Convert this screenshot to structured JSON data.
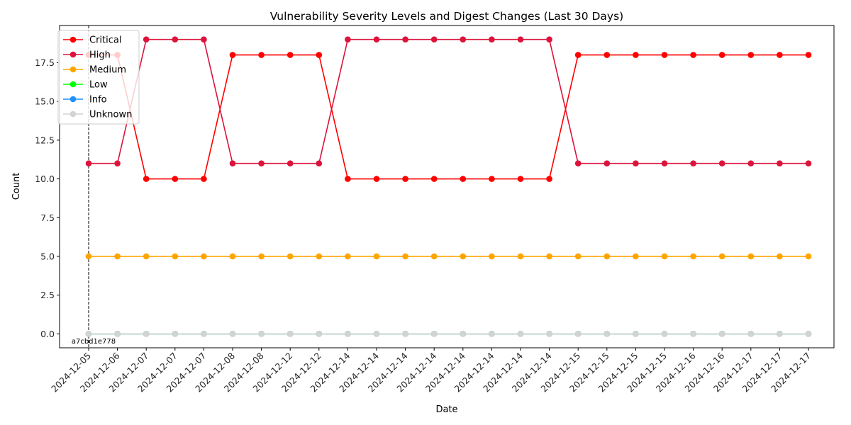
{
  "chart_data": {
    "type": "line",
    "title": "Vulnerability Severity Levels and Digest Changes (Last 30 Days)",
    "xlabel": "Date",
    "ylabel": "Count",
    "ylim": [
      -0.9,
      19.9
    ],
    "yticks": [
      0.0,
      2.5,
      5.0,
      7.5,
      10.0,
      12.5,
      15.0,
      17.5
    ],
    "ytick_labels": [
      "0.0",
      "2.5",
      "5.0",
      "7.5",
      "10.0",
      "12.5",
      "15.0",
      "17.5"
    ],
    "grid": false,
    "legend_position": "top-left",
    "categories": [
      "2024-12-05",
      "2024-12-06",
      "2024-12-07",
      "2024-12-07",
      "2024-12-07",
      "2024-12-08",
      "2024-12-08",
      "2024-12-12",
      "2024-12-12",
      "2024-12-14",
      "2024-12-14",
      "2024-12-14",
      "2024-12-14",
      "2024-12-14",
      "2024-12-14",
      "2024-12-14",
      "2024-12-14",
      "2024-12-15",
      "2024-12-15",
      "2024-12-15",
      "2024-12-15",
      "2024-12-16",
      "2024-12-16",
      "2024-12-17",
      "2024-12-17",
      "2024-12-17"
    ],
    "series": [
      {
        "name": "Critical",
        "color": "#ff0000",
        "values": [
          18,
          18,
          10,
          10,
          10,
          18,
          18,
          18,
          18,
          10,
          10,
          10,
          10,
          10,
          10,
          10,
          10,
          18,
          18,
          18,
          18,
          18,
          18,
          18,
          18,
          18
        ]
      },
      {
        "name": "High",
        "color": "#dc143c",
        "values": [
          11,
          11,
          19,
          19,
          19,
          11,
          11,
          11,
          11,
          19,
          19,
          19,
          19,
          19,
          19,
          19,
          19,
          11,
          11,
          11,
          11,
          11,
          11,
          11,
          11,
          11
        ]
      },
      {
        "name": "Medium",
        "color": "#ffa500",
        "values": [
          5,
          5,
          5,
          5,
          5,
          5,
          5,
          5,
          5,
          5,
          5,
          5,
          5,
          5,
          5,
          5,
          5,
          5,
          5,
          5,
          5,
          5,
          5,
          5,
          5,
          5
        ]
      },
      {
        "name": "Low",
        "color": "#00ff00",
        "values": [
          0,
          0,
          0,
          0,
          0,
          0,
          0,
          0,
          0,
          0,
          0,
          0,
          0,
          0,
          0,
          0,
          0,
          0,
          0,
          0,
          0,
          0,
          0,
          0,
          0,
          0
        ]
      },
      {
        "name": "Info",
        "color": "#1e90ff",
        "values": [
          0,
          0,
          0,
          0,
          0,
          0,
          0,
          0,
          0,
          0,
          0,
          0,
          0,
          0,
          0,
          0,
          0,
          0,
          0,
          0,
          0,
          0,
          0,
          0,
          0,
          0
        ]
      },
      {
        "name": "Unknown",
        "color": "#d3d3d3",
        "values": [
          0,
          0,
          0,
          0,
          0,
          0,
          0,
          0,
          0,
          0,
          0,
          0,
          0,
          0,
          0,
          0,
          0,
          0,
          0,
          0,
          0,
          0,
          0,
          0,
          0,
          0
        ]
      }
    ],
    "annotations": [
      {
        "type": "vline",
        "x_index": 0,
        "style": "dashed",
        "color": "#000000",
        "label": "a7cbd1e778"
      }
    ]
  }
}
